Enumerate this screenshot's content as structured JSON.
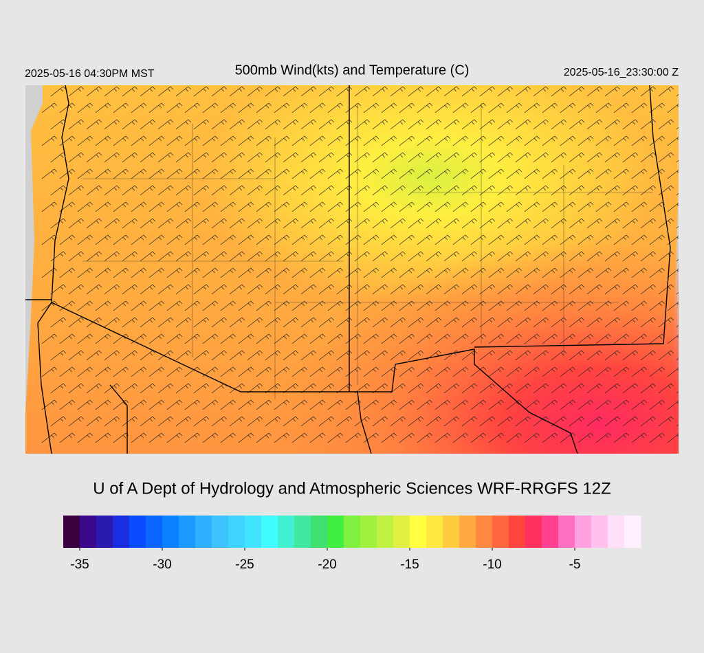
{
  "header": {
    "local_time": "2025-05-16 04:30PM MST",
    "title": "500mb Wind(kts) and Temperature (C)",
    "valid_time": "2025-05-16_23:30:00 Z"
  },
  "credit": "U of A Dept of Hydrology and Atmospheric Sciences WRF-RRGFS 12Z",
  "colorbar": {
    "range": [
      -36,
      -1
    ],
    "ticks": [
      -35,
      -30,
      -25,
      -20,
      -15,
      -10,
      -5
    ],
    "colors": [
      "#3a0040",
      "#3b0a8c",
      "#2a1ab0",
      "#1a2ee0",
      "#0a4cff",
      "#0a66ff",
      "#0a80ff",
      "#1a99ff",
      "#2db0ff",
      "#3dc4ff",
      "#3dd4ff",
      "#40e4ff",
      "#40fcff",
      "#40f0d0",
      "#40e8a0",
      "#40e070",
      "#40f040",
      "#80f040",
      "#a0f040",
      "#c0f040",
      "#e0f040",
      "#ffff40",
      "#ffe840",
      "#ffcc40",
      "#ffaa40",
      "#ff8840",
      "#ff6640",
      "#ff4440",
      "#ff3060",
      "#ff4090",
      "#ff70c0",
      "#ffa0e0",
      "#ffc0f0",
      "#ffe0f8",
      "#fff0ff"
    ]
  }
}
